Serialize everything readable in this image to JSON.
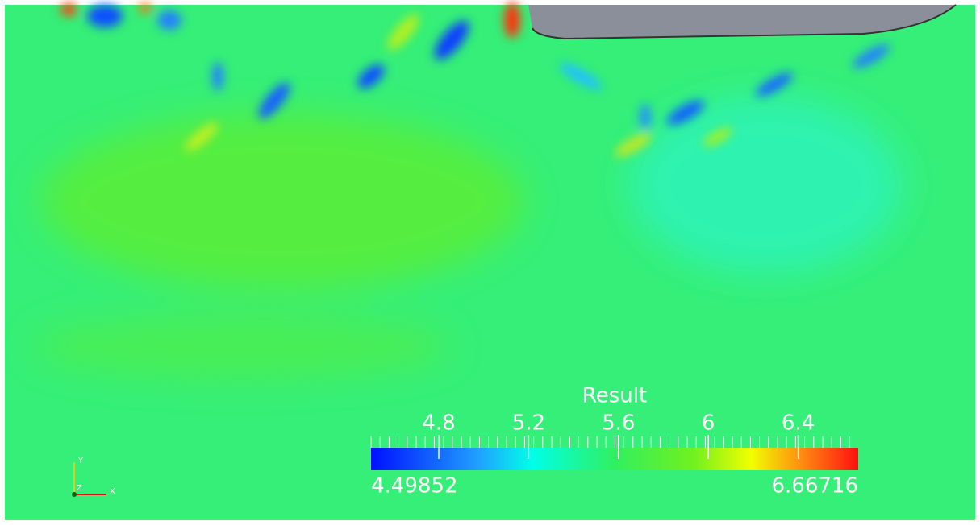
{
  "colorbar": {
    "title": "Result",
    "min": 4.49852,
    "max": 6.66716,
    "ticks": [
      4.8,
      5.2,
      5.6,
      6,
      6.4
    ]
  },
  "axes_triad": {
    "y": "Y",
    "z": "Z",
    "x": "X"
  }
}
